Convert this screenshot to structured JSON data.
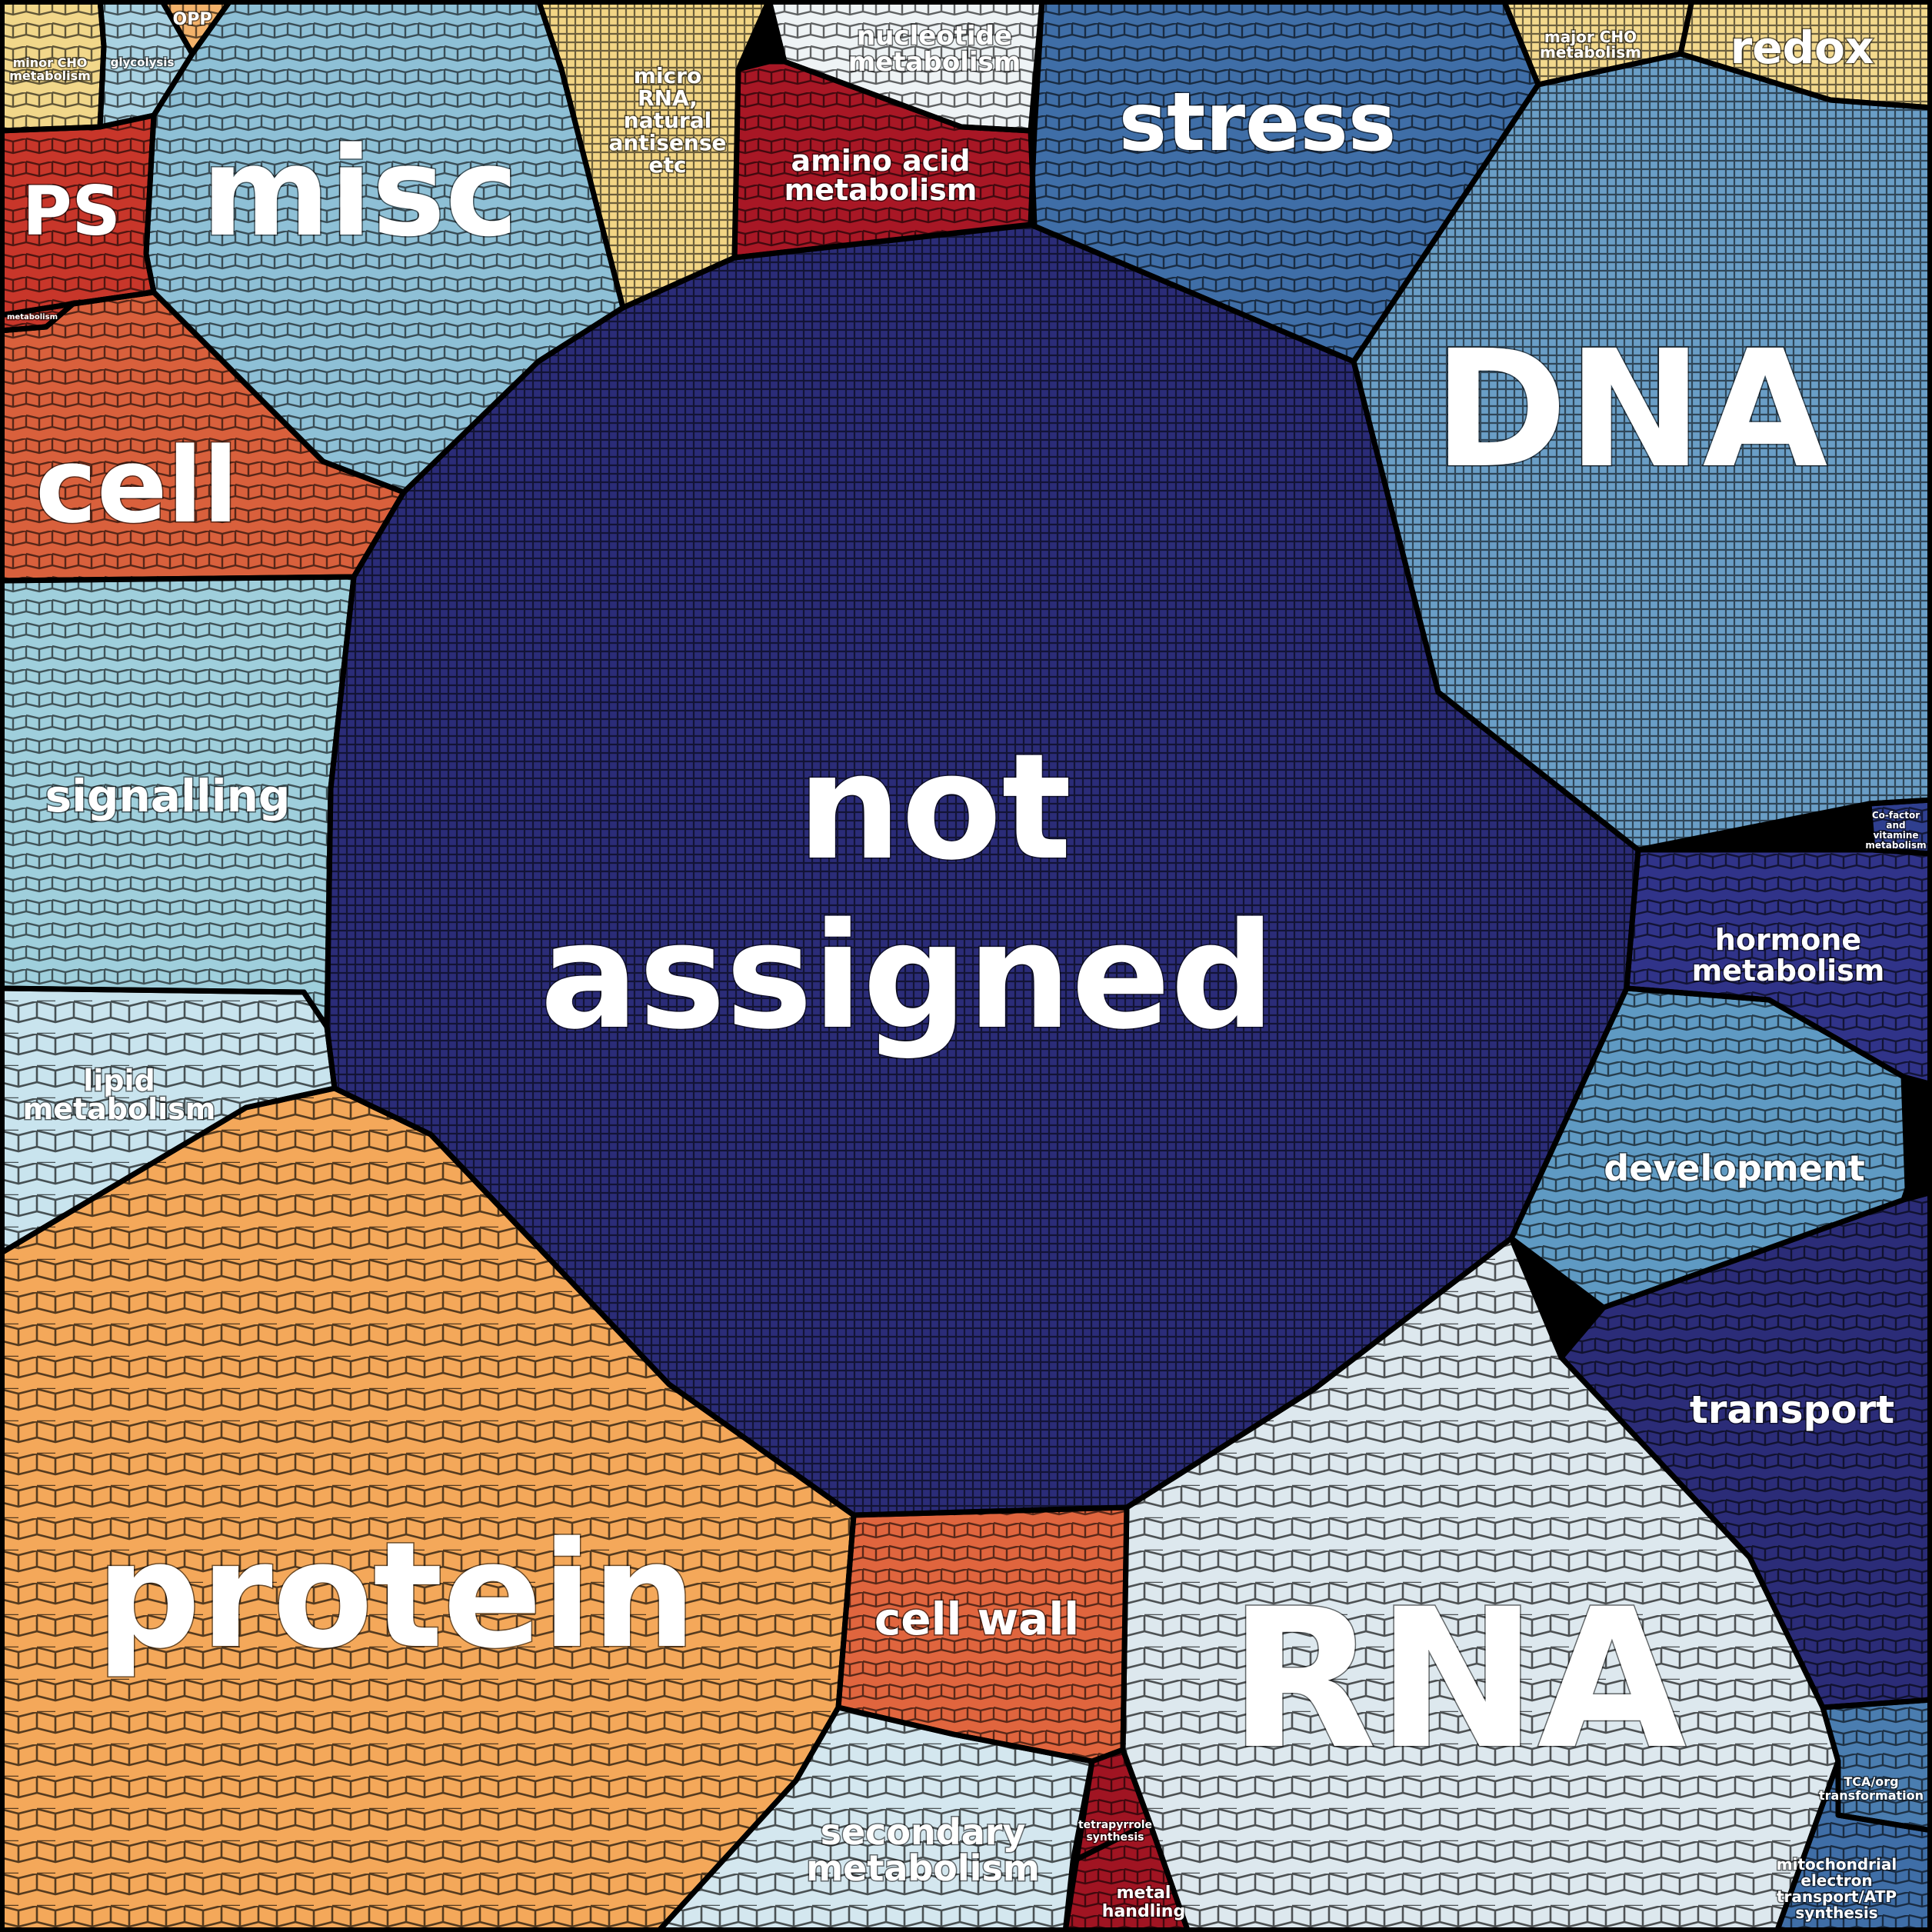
{
  "diagram": {
    "type": "voronoi-treemap",
    "border_color": "#000000",
    "categories": [
      {
        "id": "not-assigned",
        "label": "not assigned",
        "color": "#2b2c78"
      },
      {
        "id": "protein",
        "label": "protein",
        "color": "#f4a85a"
      },
      {
        "id": "rna",
        "label": "RNA",
        "color": "#dde8ee"
      },
      {
        "id": "dna",
        "label": "DNA",
        "color": "#6a9ec6"
      },
      {
        "id": "stress",
        "label": "stress",
        "color": "#3f6ea7"
      },
      {
        "id": "misc",
        "label": "misc",
        "color": "#8ec0d6"
      },
      {
        "id": "cell",
        "label": "cell",
        "color": "#d9603c"
      },
      {
        "id": "ps",
        "label": "PS",
        "color": "#c8362a"
      },
      {
        "id": "signalling",
        "label": "signalling",
        "color": "#9fcfdc"
      },
      {
        "id": "lipid-metabolism",
        "label": "lipid metabolism",
        "color": "#c9e4ee"
      },
      {
        "id": "cell-wall",
        "label": "cell wall",
        "color": "#e0653e"
      },
      {
        "id": "secondary-metabolism",
        "label": "secondary metabolism",
        "color": "#d4e7ef"
      },
      {
        "id": "transport",
        "label": "transport",
        "color": "#2b2c78"
      },
      {
        "id": "development",
        "label": "development",
        "color": "#5f9ac3"
      },
      {
        "id": "hormone-metabolism",
        "label": "hormone metabolism",
        "color": "#303389"
      },
      {
        "id": "amino-acid-metabolism",
        "label": "amino acid metabolism",
        "color": "#a81725"
      },
      {
        "id": "nucleotide-metabolism",
        "label": "nucleotide metabolism",
        "color": "#eef3f5"
      },
      {
        "id": "micro-rna",
        "label": "micro RNA, natural antisense etc",
        "color": "#f2d585"
      },
      {
        "id": "redox",
        "label": "redox",
        "color": "#f3d98d"
      },
      {
        "id": "major-cho",
        "label": "major CHO metabolism",
        "color": "#f3d98d"
      },
      {
        "id": "minor-cho",
        "label": "minor CHO metabolism",
        "color": "#f1d78a"
      },
      {
        "id": "glycolysis",
        "label": "glycolysis",
        "color": "#a9d2e2"
      },
      {
        "id": "opp",
        "label": "OPP",
        "color": "#f4b26a"
      },
      {
        "id": "metal-handling",
        "label": "metal handling",
        "color": "#a01422"
      },
      {
        "id": "tetrapyrrole",
        "label": "tetrapyrrole synthesis",
        "color": "#a01422"
      },
      {
        "id": "mito-etc",
        "label": "mitochondrial electron transport/ATP synthesis",
        "color": "#3f6ea7"
      },
      {
        "id": "tca",
        "label": "TCA/org transformation",
        "color": "#4a7db0"
      },
      {
        "id": "cofactor",
        "label": "Co-factor and vitamine metabolism",
        "color": "#2f3f8f"
      },
      {
        "id": "n-metabolism",
        "label": "metabolism",
        "color": "#c8362a"
      }
    ]
  }
}
